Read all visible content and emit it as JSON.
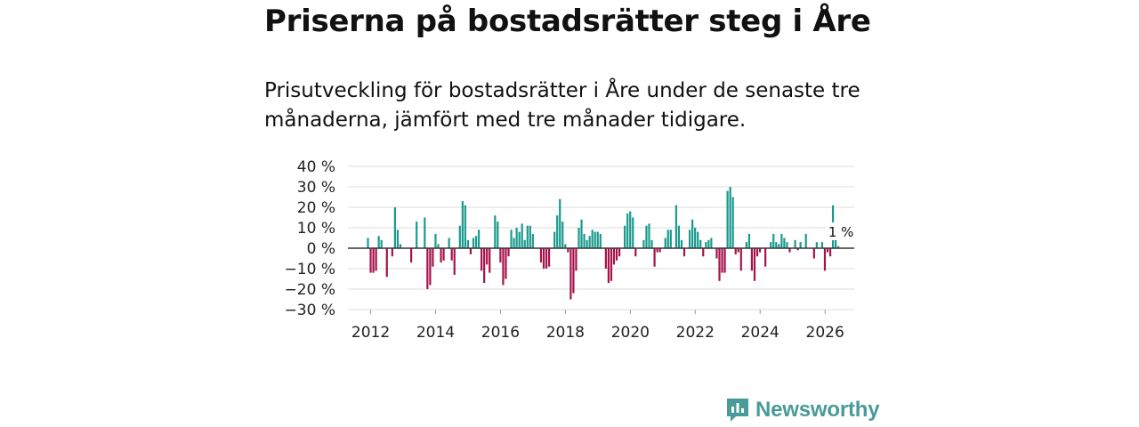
{
  "header": {
    "title": "Priserna på bostadsrätter steg i Åre",
    "subtitle": "Prisutveckling för bostadsrätter i Åre under de senaste tre månaderna, jämfört med tre månader tidigare."
  },
  "brand": {
    "name": "Newsworthy",
    "icon": "newsworthy-logo-icon",
    "color": "#4a9a9a"
  },
  "colors": {
    "positive": "#1a9a8e",
    "negative": "#a8124a",
    "grid": "#dddddd",
    "zero": "#333333"
  },
  "chart_data": {
    "type": "bar",
    "title": "Priserna på bostadsrätter steg i Åre",
    "xlabel": "",
    "ylabel": "",
    "ylim": [
      -30,
      40
    ],
    "yticks": [
      40,
      30,
      20,
      10,
      0,
      -10,
      -20,
      -30
    ],
    "ytick_labels": [
      "40 %",
      "30 %",
      "20 %",
      "10 %",
      "0 %",
      "−10 %",
      "−20 %",
      "−30 %"
    ],
    "xticks": [
      2012,
      2014,
      2016,
      2018,
      2020,
      2022,
      2024,
      2026
    ],
    "xtick_labels": [
      "2012",
      "2014",
      "2016",
      "2018",
      "2020",
      "2022",
      "2024",
      "2026"
    ],
    "grid": true,
    "x_start": 2011.917,
    "x_step": 0.0833,
    "values": [
      5,
      -12,
      -12,
      -11,
      6,
      4,
      0,
      -14,
      0,
      -4,
      20,
      9,
      2,
      0,
      0,
      0,
      -7,
      0,
      13,
      0,
      0,
      15,
      -20,
      -18,
      -9,
      7,
      2,
      -7,
      -6,
      0,
      5,
      -6,
      -13,
      0,
      11,
      23,
      21,
      4,
      -3,
      5,
      6,
      9,
      -11,
      -17,
      -8,
      -12,
      0,
      16,
      13,
      -7,
      -18,
      -15,
      -4,
      9,
      5,
      10,
      8,
      12,
      4,
      11,
      11,
      7,
      0,
      0,
      -7,
      -10,
      -10,
      -9,
      0,
      8,
      16,
      24,
      13,
      2,
      -2,
      -25,
      -22,
      -11,
      10,
      14,
      7,
      4,
      6,
      9,
      8,
      8,
      7,
      0,
      -10,
      -17,
      -16,
      -8,
      -6,
      -4,
      0,
      11,
      17,
      18,
      15,
      -4,
      0,
      0,
      4,
      11,
      12,
      4,
      -9,
      -2,
      -2,
      0,
      5,
      9,
      9,
      0,
      21,
      11,
      4,
      -4,
      0,
      9,
      14,
      10,
      8,
      4,
      -4,
      3,
      4,
      5,
      0,
      -5,
      -16,
      -12,
      -12,
      28,
      30,
      25,
      -3,
      -2,
      -11,
      0,
      3,
      7,
      -11,
      -16,
      -4,
      -2,
      0,
      -9,
      0,
      3,
      7,
      3,
      2,
      7,
      5,
      3,
      -2,
      0,
      4,
      -1,
      3,
      0,
      7,
      0,
      0,
      -5,
      3,
      0,
      3,
      -11,
      -2,
      -4,
      21,
      7,
      1
    ],
    "annotations": [
      {
        "text": "1 %",
        "value": 1,
        "note": "latest value"
      }
    ]
  }
}
